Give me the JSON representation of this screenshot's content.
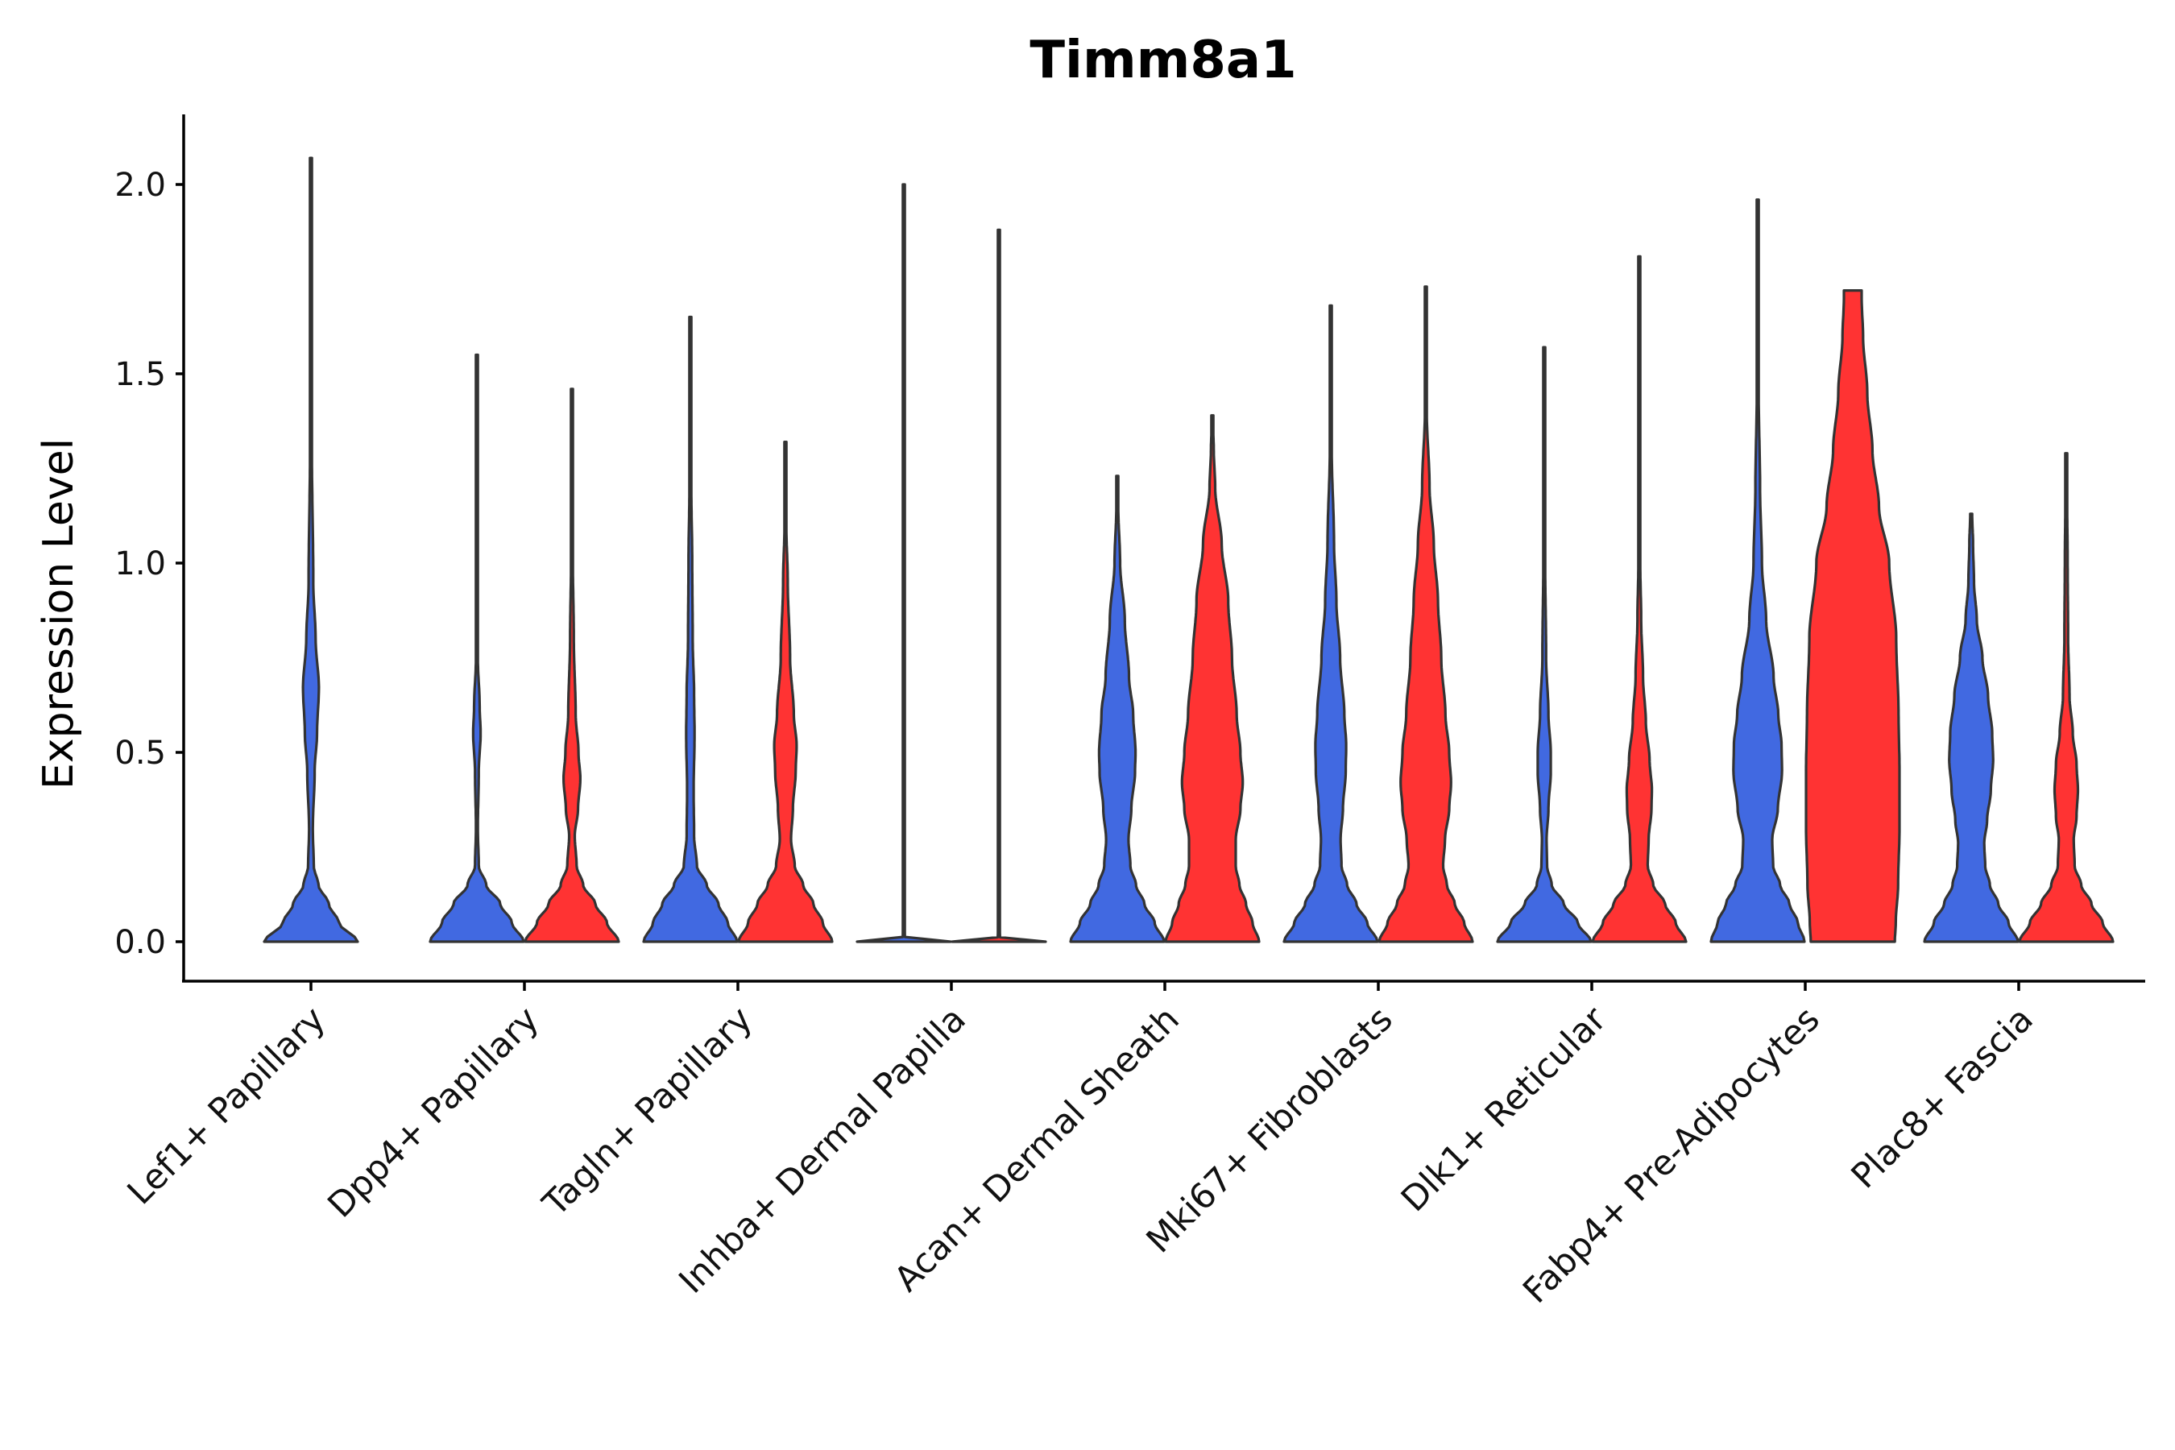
{
  "chart_data": {
    "type": "violin",
    "title": "Timm8a1",
    "xlabel": "",
    "ylabel": "Expression Level",
    "ylim": [
      -0.1,
      2.2
    ],
    "yticks": [
      0.0,
      0.5,
      1.0,
      1.5,
      2.0
    ],
    "ytick_labels": [
      "0.0",
      "0.5",
      "1.0",
      "1.5",
      "2.0"
    ],
    "grid": false,
    "legend": "none",
    "colors": {
      "group_a": "#4169E1",
      "group_b": "#FF3333",
      "outline": "#333333"
    },
    "categories": [
      "Lef1+ Papillary",
      "Dpp4+ Papillary",
      "Tagln+ Papillary",
      "Inhba+ Dermal Papilla",
      "Acan+ Dermal Sheath",
      "Mki67+ Fibroblasts",
      "Dlk1+ Reticular",
      "Fabp4+ Pre-Adipocytes",
      "Plac8+ Fascia"
    ],
    "violins": [
      {
        "category": "Lef1+ Papillary",
        "group": "group_a",
        "offset": 0,
        "max": 2.07,
        "profile": [
          [
            0,
            1.0
          ],
          [
            0.05,
            0.6
          ],
          [
            0.1,
            0.38
          ],
          [
            0.15,
            0.16
          ],
          [
            0.2,
            0.06
          ],
          [
            0.3,
            0.04
          ],
          [
            0.45,
            0.08
          ],
          [
            0.55,
            0.13
          ],
          [
            0.67,
            0.17
          ],
          [
            0.8,
            0.1
          ],
          [
            0.95,
            0.05
          ],
          [
            1.3,
            0.02
          ],
          [
            1.5,
            0.01
          ],
          [
            2.07,
            0.004
          ]
        ]
      },
      {
        "category": "Dpp4+ Papillary",
        "group": "group_a",
        "offset": -1,
        "max": 1.55,
        "profile": [
          [
            0,
            1.0
          ],
          [
            0.05,
            0.75
          ],
          [
            0.1,
            0.5
          ],
          [
            0.15,
            0.2
          ],
          [
            0.2,
            0.04
          ],
          [
            0.3,
            0.02
          ],
          [
            0.45,
            0.04
          ],
          [
            0.55,
            0.08
          ],
          [
            0.62,
            0.06
          ],
          [
            0.75,
            0.02
          ],
          [
            1.0,
            0.01
          ],
          [
            1.3,
            0.005
          ],
          [
            1.55,
            0.003
          ]
        ]
      },
      {
        "category": "Dpp4+ Papillary",
        "group": "group_b",
        "offset": 1,
        "max": 1.46,
        "profile": [
          [
            0,
            1.0
          ],
          [
            0.05,
            0.75
          ],
          [
            0.1,
            0.5
          ],
          [
            0.15,
            0.24
          ],
          [
            0.2,
            0.1
          ],
          [
            0.28,
            0.06
          ],
          [
            0.35,
            0.13
          ],
          [
            0.43,
            0.18
          ],
          [
            0.5,
            0.14
          ],
          [
            0.6,
            0.08
          ],
          [
            0.8,
            0.04
          ],
          [
            1.0,
            0.02
          ],
          [
            1.2,
            0.008
          ],
          [
            1.46,
            0.003
          ]
        ]
      },
      {
        "category": "Tagln+ Papillary",
        "group": "group_a",
        "offset": -1,
        "max": 1.65,
        "profile": [
          [
            0,
            1.0
          ],
          [
            0.05,
            0.8
          ],
          [
            0.1,
            0.6
          ],
          [
            0.15,
            0.35
          ],
          [
            0.2,
            0.14
          ],
          [
            0.28,
            0.08
          ],
          [
            0.4,
            0.07
          ],
          [
            0.55,
            0.09
          ],
          [
            0.65,
            0.08
          ],
          [
            0.8,
            0.05
          ],
          [
            1.0,
            0.04
          ],
          [
            1.2,
            0.02
          ],
          [
            1.4,
            0.008
          ],
          [
            1.65,
            0.003
          ]
        ]
      },
      {
        "category": "Tagln+ Papillary",
        "group": "group_b",
        "offset": 1,
        "max": 1.32,
        "profile": [
          [
            0,
            1.0
          ],
          [
            0.05,
            0.8
          ],
          [
            0.1,
            0.6
          ],
          [
            0.15,
            0.38
          ],
          [
            0.2,
            0.2
          ],
          [
            0.27,
            0.12
          ],
          [
            0.35,
            0.16
          ],
          [
            0.45,
            0.22
          ],
          [
            0.52,
            0.24
          ],
          [
            0.6,
            0.18
          ],
          [
            0.75,
            0.1
          ],
          [
            0.95,
            0.05
          ],
          [
            1.1,
            0.02
          ],
          [
            1.32,
            0.003
          ]
        ]
      },
      {
        "category": "Inhba+ Dermal Papilla",
        "group": "group_a",
        "offset": -1,
        "max": 2.0,
        "profile": [
          [
            0,
            1.0
          ],
          [
            0.008,
            0.03
          ],
          [
            0.02,
            0.004
          ],
          [
            2.0,
            0.003
          ]
        ]
      },
      {
        "category": "Inhba+ Dermal Papilla",
        "group": "group_b",
        "offset": 1,
        "max": 1.88,
        "profile": [
          [
            0,
            1.0
          ],
          [
            0.008,
            0.03
          ],
          [
            0.02,
            0.004
          ],
          [
            1.88,
            0.003
          ]
        ]
      },
      {
        "category": "Acan+ Dermal Sheath",
        "group": "group_a",
        "offset": -1,
        "max": 1.23,
        "profile": [
          [
            0,
            1.0
          ],
          [
            0.05,
            0.8
          ],
          [
            0.1,
            0.58
          ],
          [
            0.15,
            0.4
          ],
          [
            0.2,
            0.28
          ],
          [
            0.27,
            0.24
          ],
          [
            0.35,
            0.3
          ],
          [
            0.45,
            0.38
          ],
          [
            0.5,
            0.39
          ],
          [
            0.6,
            0.34
          ],
          [
            0.7,
            0.25
          ],
          [
            0.85,
            0.16
          ],
          [
            1.0,
            0.06
          ],
          [
            1.15,
            0.02
          ],
          [
            1.23,
            0.004
          ]
        ]
      },
      {
        "category": "Acan+ Dermal Sheath",
        "group": "group_b",
        "offset": 1,
        "max": 1.39,
        "profile": [
          [
            0,
            1.0
          ],
          [
            0.05,
            0.86
          ],
          [
            0.1,
            0.72
          ],
          [
            0.15,
            0.58
          ],
          [
            0.2,
            0.5
          ],
          [
            0.27,
            0.5
          ],
          [
            0.35,
            0.6
          ],
          [
            0.42,
            0.65
          ],
          [
            0.5,
            0.6
          ],
          [
            0.6,
            0.52
          ],
          [
            0.75,
            0.42
          ],
          [
            0.9,
            0.34
          ],
          [
            1.05,
            0.2
          ],
          [
            1.2,
            0.06
          ],
          [
            1.3,
            0.03
          ],
          [
            1.39,
            0.004
          ]
        ]
      },
      {
        "category": "Mki67+ Fibroblasts",
        "group": "group_a",
        "offset": -1,
        "max": 1.68,
        "profile": [
          [
            0,
            1.0
          ],
          [
            0.05,
            0.78
          ],
          [
            0.1,
            0.55
          ],
          [
            0.15,
            0.35
          ],
          [
            0.2,
            0.23
          ],
          [
            0.27,
            0.21
          ],
          [
            0.35,
            0.26
          ],
          [
            0.45,
            0.32
          ],
          [
            0.52,
            0.33
          ],
          [
            0.6,
            0.29
          ],
          [
            0.75,
            0.2
          ],
          [
            0.9,
            0.12
          ],
          [
            1.05,
            0.07
          ],
          [
            1.3,
            0.02
          ],
          [
            1.5,
            0.008
          ],
          [
            1.68,
            0.003
          ]
        ]
      },
      {
        "category": "Mki67+ Fibroblasts",
        "group": "group_b",
        "offset": 1,
        "max": 1.73,
        "profile": [
          [
            0,
            1.0
          ],
          [
            0.05,
            0.82
          ],
          [
            0.1,
            0.62
          ],
          [
            0.15,
            0.45
          ],
          [
            0.2,
            0.37
          ],
          [
            0.27,
            0.41
          ],
          [
            0.35,
            0.5
          ],
          [
            0.42,
            0.54
          ],
          [
            0.5,
            0.5
          ],
          [
            0.6,
            0.42
          ],
          [
            0.75,
            0.33
          ],
          [
            0.9,
            0.26
          ],
          [
            1.05,
            0.17
          ],
          [
            1.2,
            0.08
          ],
          [
            1.4,
            0.02
          ],
          [
            1.73,
            0.003
          ]
        ]
      },
      {
        "category": "Dlk1+ Reticular",
        "group": "group_a",
        "offset": -1,
        "max": 1.57,
        "profile": [
          [
            0,
            1.0
          ],
          [
            0.05,
            0.72
          ],
          [
            0.1,
            0.42
          ],
          [
            0.15,
            0.16
          ],
          [
            0.2,
            0.06
          ],
          [
            0.27,
            0.05
          ],
          [
            0.35,
            0.09
          ],
          [
            0.45,
            0.14
          ],
          [
            0.5,
            0.14
          ],
          [
            0.6,
            0.09
          ],
          [
            0.75,
            0.04
          ],
          [
            1.0,
            0.02
          ],
          [
            1.3,
            0.01
          ],
          [
            1.57,
            0.003
          ]
        ]
      },
      {
        "category": "Dlk1+ Reticular",
        "group": "group_b",
        "offset": 1,
        "max": 1.81,
        "profile": [
          [
            0,
            1.0
          ],
          [
            0.05,
            0.78
          ],
          [
            0.1,
            0.55
          ],
          [
            0.15,
            0.3
          ],
          [
            0.2,
            0.18
          ],
          [
            0.27,
            0.2
          ],
          [
            0.35,
            0.26
          ],
          [
            0.4,
            0.27
          ],
          [
            0.48,
            0.22
          ],
          [
            0.58,
            0.14
          ],
          [
            0.7,
            0.08
          ],
          [
            0.85,
            0.04
          ],
          [
            1.0,
            0.02
          ],
          [
            1.3,
            0.01
          ],
          [
            1.81,
            0.003
          ]
        ]
      },
      {
        "category": "Fabp4+ Pre-Adipocytes",
        "group": "group_a",
        "offset": -1,
        "max": 1.96,
        "profile": [
          [
            0,
            1.0
          ],
          [
            0.05,
            0.86
          ],
          [
            0.1,
            0.68
          ],
          [
            0.15,
            0.48
          ],
          [
            0.2,
            0.33
          ],
          [
            0.27,
            0.31
          ],
          [
            0.35,
            0.43
          ],
          [
            0.45,
            0.52
          ],
          [
            0.52,
            0.51
          ],
          [
            0.6,
            0.44
          ],
          [
            0.7,
            0.34
          ],
          [
            0.85,
            0.18
          ],
          [
            1.0,
            0.09
          ],
          [
            1.2,
            0.05
          ],
          [
            1.45,
            0.02
          ],
          [
            1.7,
            0.008
          ],
          [
            1.96,
            0.003
          ]
        ]
      },
      {
        "category": "Fabp4+ Pre-Adipocytes",
        "group": "group_b",
        "offset": 1,
        "max": 1.72,
        "profile": [
          [
            0,
            0.9
          ],
          [
            0.05,
            0.92
          ],
          [
            0.15,
            0.97
          ],
          [
            0.3,
            1.0
          ],
          [
            0.45,
            1.0
          ],
          [
            0.6,
            0.98
          ],
          [
            0.8,
            0.93
          ],
          [
            1.0,
            0.78
          ],
          [
            1.15,
            0.56
          ],
          [
            1.3,
            0.42
          ],
          [
            1.45,
            0.31
          ],
          [
            1.6,
            0.22
          ],
          [
            1.7,
            0.19
          ],
          [
            1.72,
            0.19
          ]
        ]
      },
      {
        "category": "Plac8+ Fascia",
        "group": "group_a",
        "offset": -1,
        "max": 1.13,
        "profile": [
          [
            0,
            1.0
          ],
          [
            0.05,
            0.8
          ],
          [
            0.1,
            0.58
          ],
          [
            0.15,
            0.4
          ],
          [
            0.2,
            0.3
          ],
          [
            0.26,
            0.28
          ],
          [
            0.32,
            0.34
          ],
          [
            0.4,
            0.42
          ],
          [
            0.48,
            0.47
          ],
          [
            0.55,
            0.45
          ],
          [
            0.65,
            0.36
          ],
          [
            0.75,
            0.24
          ],
          [
            0.85,
            0.12
          ],
          [
            0.95,
            0.06
          ],
          [
            1.05,
            0.04
          ],
          [
            1.13,
            0.02
          ]
        ]
      },
      {
        "category": "Plac8+ Fascia",
        "group": "group_b",
        "offset": 1,
        "max": 1.29,
        "profile": [
          [
            0,
            1.0
          ],
          [
            0.05,
            0.78
          ],
          [
            0.1,
            0.54
          ],
          [
            0.15,
            0.32
          ],
          [
            0.2,
            0.18
          ],
          [
            0.27,
            0.16
          ],
          [
            0.33,
            0.22
          ],
          [
            0.4,
            0.25
          ],
          [
            0.47,
            0.22
          ],
          [
            0.55,
            0.14
          ],
          [
            0.65,
            0.07
          ],
          [
            0.8,
            0.04
          ],
          [
            1.0,
            0.03
          ],
          [
            1.15,
            0.02
          ],
          [
            1.29,
            0.003
          ]
        ]
      }
    ]
  }
}
